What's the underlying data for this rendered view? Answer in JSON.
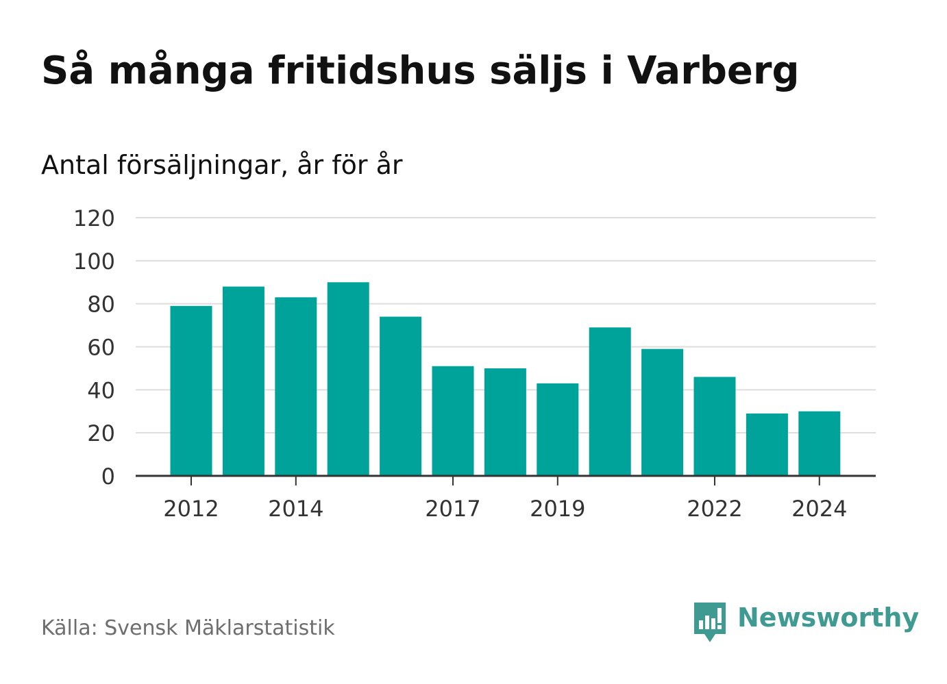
{
  "title": "Så många fritidshus säljs i Varberg",
  "subtitle": "Antal försäljningar, år för år",
  "source": "Källa: Svensk Mäklarstatistik",
  "brand": {
    "name": "Newsworthy",
    "icon": "newsworthy-logo-icon",
    "color": "#3f9a92"
  },
  "colors": {
    "bar": "#00a39a",
    "grid": "#dddddd",
    "axis": "#333333",
    "title": "#111111",
    "source": "#6e6e6e"
  },
  "chart_data": {
    "type": "bar",
    "categories": [
      "2012",
      "2013",
      "2014",
      "2015",
      "2016",
      "2017",
      "2018",
      "2019",
      "2020",
      "2021",
      "2022",
      "2023",
      "2024"
    ],
    "values": [
      79,
      88,
      83,
      90,
      74,
      51,
      50,
      43,
      69,
      59,
      46,
      29,
      30
    ],
    "x_tick_labels": [
      "2012",
      "2014",
      "2017",
      "2019",
      "2022",
      "2024"
    ],
    "y_ticks": [
      0,
      20,
      40,
      60,
      80,
      100,
      120
    ],
    "ylim": [
      0,
      120
    ],
    "title": "Så många fritidshus säljs i Varberg",
    "subtitle": "Antal försäljningar, år för år",
    "xlabel": "",
    "ylabel": "",
    "grid": true,
    "legend": false
  }
}
